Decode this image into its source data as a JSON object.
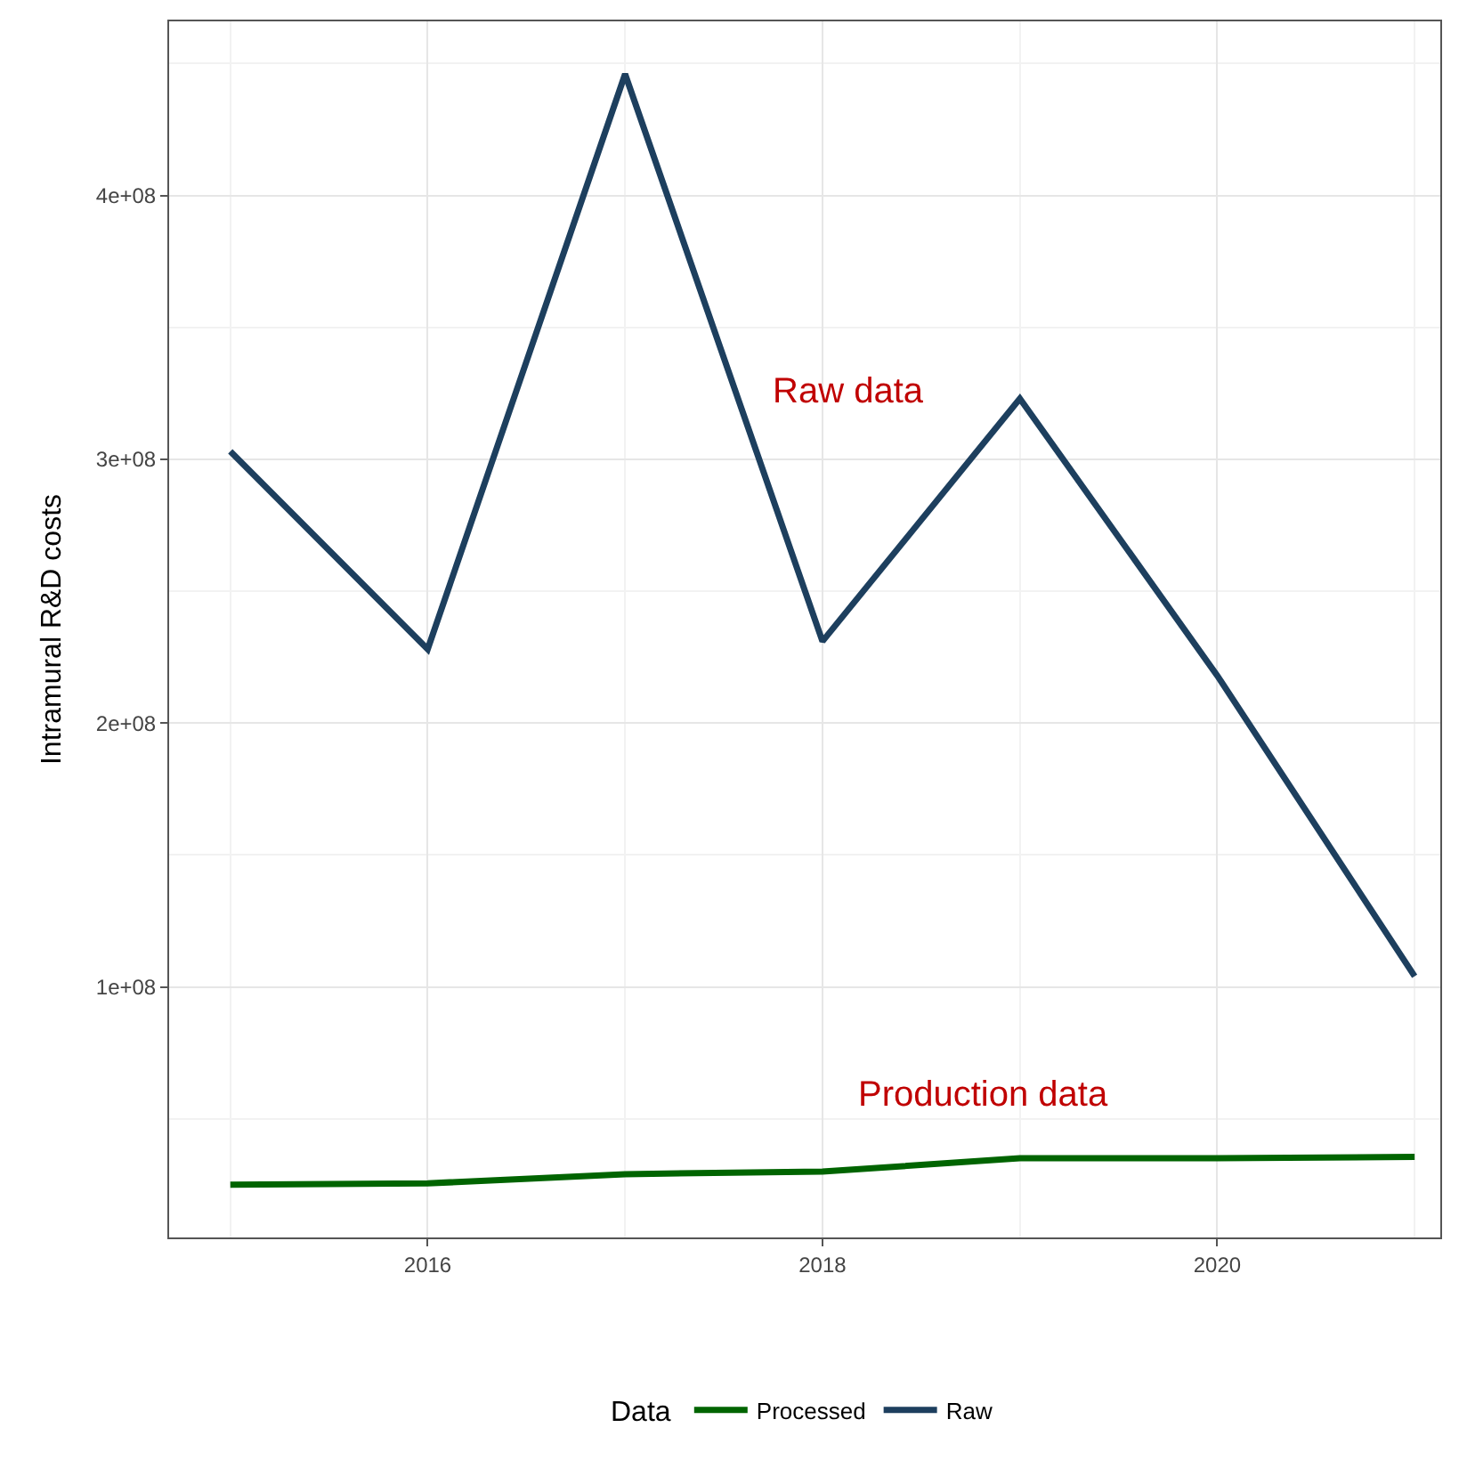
{
  "chart_data": {
    "type": "line",
    "ylabel": "Intramural R&D costs",
    "legend_title": "Data",
    "x": [
      2015,
      2016,
      2017,
      2018,
      2019,
      2020,
      2021
    ],
    "series": [
      {
        "name": "Processed",
        "color": "#006400",
        "values": [
          25000000,
          25500000,
          29000000,
          30000000,
          35000000,
          35000000,
          35500000
        ]
      },
      {
        "name": "Raw",
        "color": "#1d3f5e",
        "values": [
          303000000,
          228000000,
          446000000,
          231000000,
          323000000,
          218000000,
          104000000
        ]
      }
    ],
    "xlim": [
      2014.69,
      2021.13
    ],
    "xticks": [
      2016,
      2018,
      2020
    ],
    "ylim": [
      5000000,
      466000000
    ],
    "yticks": [
      {
        "value": 100000000,
        "label": "1e+08"
      },
      {
        "value": 200000000,
        "label": "2e+08"
      },
      {
        "value": 300000000,
        "label": "3e+08"
      },
      {
        "value": 400000000,
        "label": "4e+08"
      }
    ],
    "annotations": [
      "Raw data",
      "Production data"
    ],
    "grid": true,
    "legend": "bottom",
    "line_style": "solid",
    "marker": "none"
  }
}
